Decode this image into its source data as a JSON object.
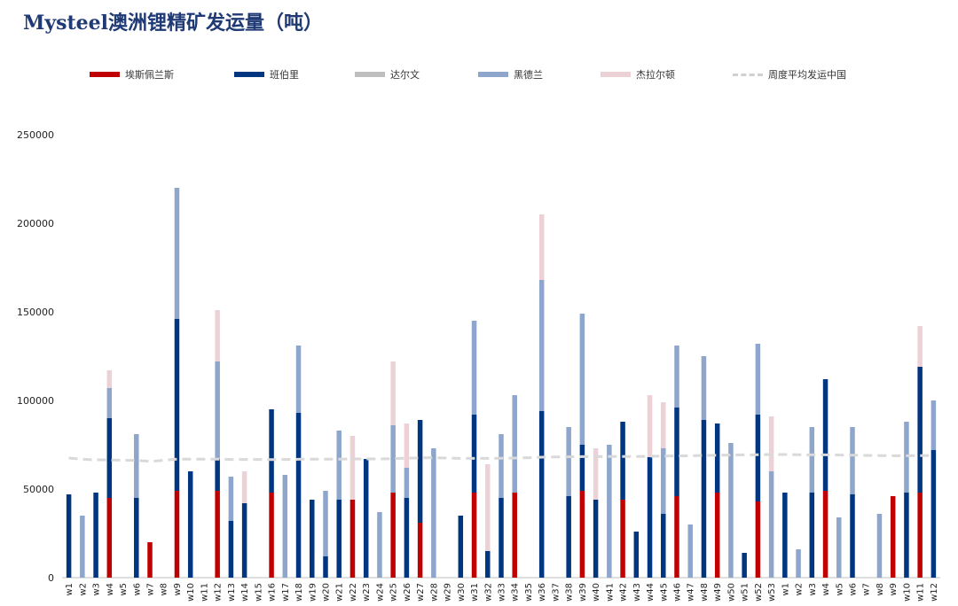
{
  "chart_data": {
    "type": "bar",
    "stacked": true,
    "title": "Mysteel澳洲锂精矿发运量（吨）",
    "legend_position": "top",
    "grid": false,
    "ylim": [
      0,
      250000
    ],
    "yticks": [
      0,
      50000,
      100000,
      150000,
      200000,
      250000
    ],
    "categories": [
      "w1",
      "w2",
      "w3",
      "w4",
      "w5",
      "w6",
      "w7",
      "w8",
      "w9",
      "w10",
      "w11",
      "w12",
      "w13",
      "w14",
      "w15",
      "w16",
      "w17",
      "w18",
      "w19",
      "w20",
      "w21",
      "w22",
      "w23",
      "w24",
      "w25",
      "w26",
      "w27",
      "w28",
      "w29",
      "w30",
      "w31",
      "w32",
      "w33",
      "w34",
      "w35",
      "w36",
      "w37",
      "w38",
      "w39",
      "w40",
      "w41",
      "w42",
      "w43",
      "w44",
      "w45",
      "w46",
      "w47",
      "w48",
      "w49",
      "w50",
      "w51",
      "w52",
      "w53",
      "w1",
      "w2",
      "w3",
      "w4",
      "w5",
      "w6",
      "w7",
      "w8",
      "w9",
      "w10",
      "w11",
      "w12"
    ],
    "series": [
      {
        "name": "埃斯佩兰斯",
        "color": "#c00000",
        "values": [
          0,
          0,
          0,
          45000,
          0,
          0,
          20000,
          0,
          49000,
          0,
          0,
          49000,
          0,
          0,
          0,
          48000,
          0,
          0,
          0,
          0,
          0,
          44000,
          0,
          0,
          48000,
          0,
          31000,
          0,
          0,
          0,
          48000,
          0,
          0,
          48000,
          0,
          0,
          0,
          0,
          49000,
          0,
          0,
          44000,
          0,
          0,
          0,
          46000,
          0,
          0,
          48000,
          0,
          0,
          43000,
          0,
          0,
          0,
          0,
          49000,
          0,
          0,
          0,
          0,
          46000,
          0,
          48000,
          0
        ]
      },
      {
        "name": "班伯里",
        "color": "#003580",
        "values": [
          47000,
          0,
          48000,
          45000,
          0,
          45000,
          0,
          0,
          97000,
          60000,
          0,
          18000,
          32000,
          42000,
          0,
          47000,
          0,
          93000,
          44000,
          12000,
          44000,
          0,
          67000,
          0,
          0,
          45000,
          58000,
          0,
          0,
          35000,
          44000,
          15000,
          45000,
          0,
          0,
          94000,
          0,
          46000,
          26000,
          44000,
          0,
          44000,
          26000,
          68000,
          36000,
          50000,
          0,
          89000,
          39000,
          0,
          14000,
          49000,
          0,
          48000,
          0,
          48000,
          63000,
          0,
          47000,
          0,
          0,
          0,
          48000,
          71000,
          72000
        ]
      },
      {
        "name": "达尔文",
        "color": "#bfbfbf",
        "values": [
          0,
          0,
          0,
          0,
          0,
          0,
          0,
          0,
          0,
          0,
          0,
          0,
          0,
          0,
          0,
          0,
          0,
          0,
          0,
          0,
          0,
          0,
          0,
          0,
          0,
          0,
          0,
          0,
          0,
          0,
          0,
          0,
          0,
          0,
          0,
          0,
          0,
          0,
          0,
          0,
          0,
          0,
          0,
          0,
          0,
          0,
          0,
          0,
          0,
          0,
          0,
          0,
          0,
          0,
          0,
          0,
          0,
          0,
          0,
          0,
          0,
          0,
          0,
          0,
          0
        ]
      },
      {
        "name": "黑德兰",
        "color": "#8ea6cc",
        "values": [
          0,
          35000,
          0,
          17000,
          0,
          36000,
          0,
          0,
          74000,
          0,
          0,
          55000,
          25000,
          0,
          0,
          0,
          58000,
          38000,
          0,
          37000,
          39000,
          0,
          0,
          37000,
          38000,
          17000,
          0,
          73000,
          0,
          0,
          53000,
          0,
          36000,
          55000,
          0,
          74000,
          0,
          39000,
          74000,
          0,
          75000,
          0,
          0,
          0,
          37000,
          35000,
          30000,
          36000,
          0,
          76000,
          0,
          40000,
          60000,
          0,
          16000,
          37000,
          0,
          34000,
          38000,
          0,
          36000,
          0,
          40000,
          0,
          28000
        ]
      },
      {
        "name": "杰拉尔顿",
        "color": "#ecd2d6",
        "values": [
          0,
          0,
          0,
          10000,
          0,
          0,
          0,
          0,
          0,
          0,
          0,
          29000,
          0,
          18000,
          0,
          0,
          0,
          0,
          0,
          0,
          0,
          36000,
          0,
          0,
          36000,
          25000,
          0,
          0,
          0,
          0,
          0,
          49000,
          0,
          0,
          0,
          37000,
          0,
          0,
          0,
          29000,
          0,
          0,
          0,
          35000,
          26000,
          0,
          0,
          0,
          0,
          0,
          0,
          0,
          31000,
          0,
          0,
          0,
          0,
          0,
          0,
          0,
          0,
          0,
          0,
          23000,
          0
        ]
      },
      {
        "name": "周度平均发运中国",
        "color": "#d9d9d9",
        "type": "dashed-line",
        "values": [
          67500,
          66800,
          66500,
          66400,
          66300,
          66200,
          65600,
          66200,
          66900,
          66900,
          66900,
          66900,
          66700,
          66700,
          66700,
          66600,
          66700,
          66800,
          66900,
          66900,
          66900,
          67000,
          67000,
          67000,
          67200,
          67400,
          67600,
          67700,
          67500,
          67300,
          67300,
          67300,
          67400,
          67500,
          67700,
          68000,
          68100,
          68200,
          68300,
          68300,
          68400,
          68400,
          68400,
          68500,
          68600,
          68700,
          68800,
          69000,
          69100,
          69200,
          69300,
          69400,
          69500,
          69500,
          69400,
          69300,
          69300,
          69200,
          69100,
          69000,
          68900,
          68800,
          68800,
          68900,
          69000
        ]
      }
    ]
  }
}
